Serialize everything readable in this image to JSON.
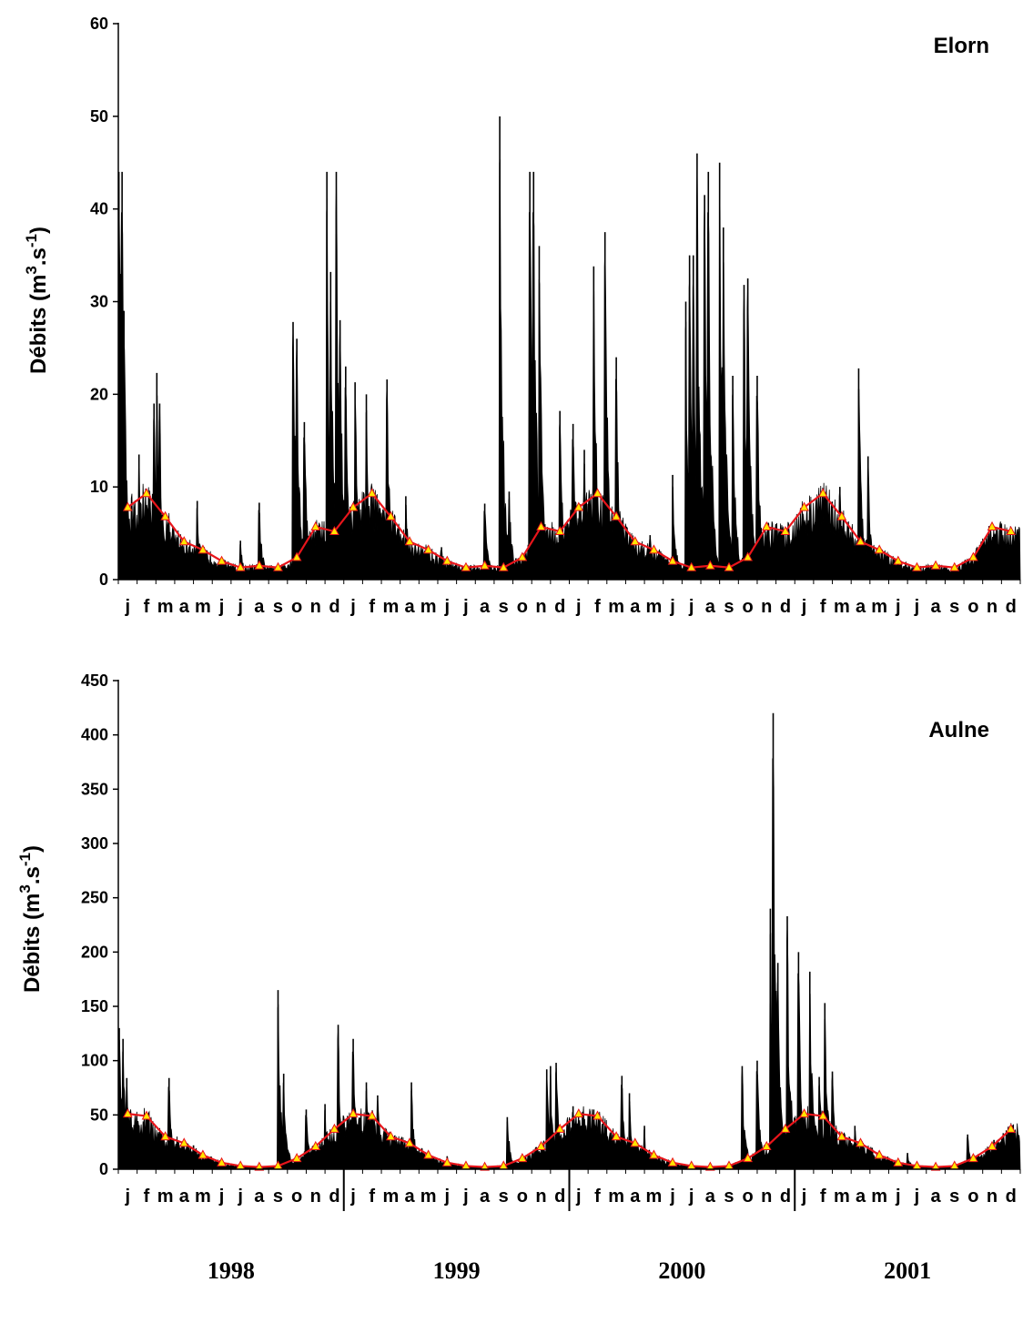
{
  "chart_data": [
    {
      "type": "bar",
      "title": "Elorn",
      "ylabel": "Débits (m3.s-1)",
      "ylabel_parts": {
        "pre": "Débits (m",
        "sup1": "3",
        "mid": ".s",
        "sup2": "-1",
        "post": ")"
      },
      "ylim": [
        0,
        60
      ],
      "yticks": [
        "0",
        "10",
        "20",
        "30",
        "40",
        "50",
        "60"
      ],
      "x_labels": [
        "j",
        "f",
        "m",
        "a",
        "m",
        "j",
        "j",
        "a",
        "s",
        "o",
        "n",
        "d",
        "j",
        "f",
        "m",
        "a",
        "m",
        "j",
        "j",
        "a",
        "s",
        "o",
        "n",
        "d",
        "j",
        "f",
        "m",
        "a",
        "m",
        "j",
        "j",
        "a",
        "s",
        "o",
        "n",
        "d",
        "j",
        "f",
        "m",
        "a",
        "m",
        "j",
        "j",
        "a",
        "s",
        "o",
        "n",
        "d"
      ],
      "daily_peaks": [
        {
          "month": 0.03,
          "value": 44
        },
        {
          "month": 0.12,
          "value": 33
        },
        {
          "month": 0.2,
          "value": 44
        },
        {
          "month": 0.3,
          "value": 29
        },
        {
          "month": 1.1,
          "value": 13.5
        },
        {
          "month": 1.9,
          "value": 19
        },
        {
          "month": 2.05,
          "value": 22.3
        },
        {
          "month": 2.2,
          "value": 19
        },
        {
          "month": 4.2,
          "value": 8.5
        },
        {
          "month": 6.5,
          "value": 4.2
        },
        {
          "month": 7.5,
          "value": 8.3
        },
        {
          "month": 9.3,
          "value": 27.8
        },
        {
          "month": 9.5,
          "value": 26
        },
        {
          "month": 9.9,
          "value": 17
        },
        {
          "month": 11.1,
          "value": 44
        },
        {
          "month": 11.3,
          "value": 33.2
        },
        {
          "month": 11.6,
          "value": 44
        },
        {
          "month": 11.8,
          "value": 28
        },
        {
          "month": 12.1,
          "value": 23
        },
        {
          "month": 12.6,
          "value": 21.3
        },
        {
          "month": 13.2,
          "value": 20
        },
        {
          "month": 14.3,
          "value": 21.6
        },
        {
          "month": 15.3,
          "value": 9
        },
        {
          "month": 17.2,
          "value": 3.5
        },
        {
          "month": 19.5,
          "value": 8.2
        },
        {
          "month": 20.3,
          "value": 50
        },
        {
          "month": 20.8,
          "value": 9.5
        },
        {
          "month": 21.9,
          "value": 44
        },
        {
          "month": 22.1,
          "value": 44
        },
        {
          "month": 22.4,
          "value": 36
        },
        {
          "month": 23.5,
          "value": 18.2
        },
        {
          "month": 24.2,
          "value": 16.8
        },
        {
          "month": 24.8,
          "value": 14
        },
        {
          "month": 25.3,
          "value": 33.8
        },
        {
          "month": 25.9,
          "value": 37.5
        },
        {
          "month": 26.5,
          "value": 24
        },
        {
          "month": 28.3,
          "value": 4.8
        },
        {
          "month": 29.5,
          "value": 11.3
        },
        {
          "month": 30.2,
          "value": 30
        },
        {
          "month": 30.4,
          "value": 35
        },
        {
          "month": 30.6,
          "value": 35
        },
        {
          "month": 30.8,
          "value": 46
        },
        {
          "month": 31.2,
          "value": 41.5
        },
        {
          "month": 31.4,
          "value": 44
        },
        {
          "month": 32.0,
          "value": 45
        },
        {
          "month": 32.2,
          "value": 38
        },
        {
          "month": 32.7,
          "value": 22
        },
        {
          "month": 33.3,
          "value": 31.8
        },
        {
          "month": 33.5,
          "value": 32.5
        },
        {
          "month": 34.0,
          "value": 22
        },
        {
          "month": 35.0,
          "value": 6
        },
        {
          "month": 37.3,
          "value": 3.5
        },
        {
          "month": 38.4,
          "value": 10
        },
        {
          "month": 39.4,
          "value": 22.8
        },
        {
          "month": 39.9,
          "value": 13.3
        }
      ],
      "monthly_means": [
        7.8,
        9.3,
        6.8,
        4.1,
        3.2,
        2.0,
        1.3,
        1.5,
        1.3,
        2.4,
        5.7,
        5.2,
        7.8,
        9.3,
        6.8,
        4.1,
        3.2,
        2.0,
        1.3,
        1.5,
        1.3,
        2.4,
        5.7,
        5.2,
        7.8,
        9.3,
        6.8,
        4.1,
        3.2,
        2.0,
        1.3,
        1.5,
        1.3,
        2.4,
        5.7,
        5.2,
        7.8,
        9.3,
        6.8,
        4.1,
        3.2,
        2.0,
        1.3,
        1.5,
        1.3,
        2.4,
        5.7,
        5.2
      ],
      "colors": {
        "flow": "#000000",
        "mean_line": "#e8151b",
        "marker_fill": "#ffe600",
        "marker_stroke": "#e8151b"
      }
    },
    {
      "type": "bar",
      "title": "Aulne",
      "ylabel": "Débits (m3.s-1)",
      "ylabel_parts": {
        "pre": "Débits (m",
        "sup1": "3",
        "mid": ".s",
        "sup2": "-1",
        "post": ")"
      },
      "ylim": [
        0,
        450
      ],
      "yticks": [
        "0",
        "50",
        "100",
        "150",
        "200",
        "250",
        "300",
        "350",
        "400",
        "450"
      ],
      "x_labels": [
        "j",
        "f",
        "m",
        "a",
        "m",
        "j",
        "j",
        "a",
        "s",
        "o",
        "n",
        "d",
        "j",
        "f",
        "m",
        "a",
        "m",
        "j",
        "j",
        "a",
        "s",
        "o",
        "n",
        "d",
        "j",
        "f",
        "m",
        "a",
        "m",
        "j",
        "j",
        "a",
        "s",
        "o",
        "n",
        "d",
        "j",
        "f",
        "m",
        "a",
        "m",
        "j",
        "j",
        "a",
        "s",
        "o",
        "n",
        "d"
      ],
      "years": [
        "1998",
        "1999",
        "2000",
        "2001"
      ],
      "daily_peaks": [
        {
          "month": 0.05,
          "value": 130
        },
        {
          "month": 0.25,
          "value": 120
        },
        {
          "month": 0.45,
          "value": 84
        },
        {
          "month": 2.7,
          "value": 84
        },
        {
          "month": 3.4,
          "value": 24
        },
        {
          "month": 4.0,
          "value": 22
        },
        {
          "month": 8.5,
          "value": 165
        },
        {
          "month": 8.8,
          "value": 88
        },
        {
          "month": 10.0,
          "value": 55
        },
        {
          "month": 11.0,
          "value": 60
        },
        {
          "month": 11.7,
          "value": 133
        },
        {
          "month": 12.5,
          "value": 120
        },
        {
          "month": 13.2,
          "value": 80
        },
        {
          "month": 13.8,
          "value": 68
        },
        {
          "month": 15.6,
          "value": 80
        },
        {
          "month": 17.5,
          "value": 12
        },
        {
          "month": 20.7,
          "value": 48
        },
        {
          "month": 22.8,
          "value": 92
        },
        {
          "month": 23.0,
          "value": 95
        },
        {
          "month": 23.3,
          "value": 98
        },
        {
          "month": 24.2,
          "value": 58
        },
        {
          "month": 25.3,
          "value": 55
        },
        {
          "month": 26.8,
          "value": 86
        },
        {
          "month": 27.2,
          "value": 70
        },
        {
          "month": 28.0,
          "value": 40
        },
        {
          "month": 33.2,
          "value": 95
        },
        {
          "month": 34.0,
          "value": 100
        },
        {
          "month": 34.7,
          "value": 240
        },
        {
          "month": 34.85,
          "value": 420
        },
        {
          "month": 35.1,
          "value": 190
        },
        {
          "month": 35.6,
          "value": 233
        },
        {
          "month": 36.2,
          "value": 200
        },
        {
          "month": 36.8,
          "value": 182
        },
        {
          "month": 37.3,
          "value": 85
        },
        {
          "month": 37.6,
          "value": 153
        },
        {
          "month": 38.0,
          "value": 90
        },
        {
          "month": 39.2,
          "value": 40
        },
        {
          "month": 42.0,
          "value": 15
        },
        {
          "month": 45.2,
          "value": 32
        },
        {
          "month": 46.6,
          "value": 27
        }
      ],
      "monthly_means": [
        51,
        49,
        30,
        24,
        13,
        6,
        3,
        2,
        3,
        10,
        21,
        37,
        51,
        49,
        30,
        24,
        13,
        6,
        3,
        2,
        3,
        10,
        21,
        37,
        51,
        49,
        30,
        24,
        13,
        6,
        3,
        2,
        3,
        10,
        21,
        37,
        51,
        49,
        30,
        24,
        13,
        6,
        3,
        2,
        3,
        10,
        21,
        37
      ],
      "colors": {
        "flow": "#000000",
        "mean_line": "#e8151b",
        "marker_fill": "#ffe600",
        "marker_stroke": "#e8151b"
      }
    }
  ]
}
